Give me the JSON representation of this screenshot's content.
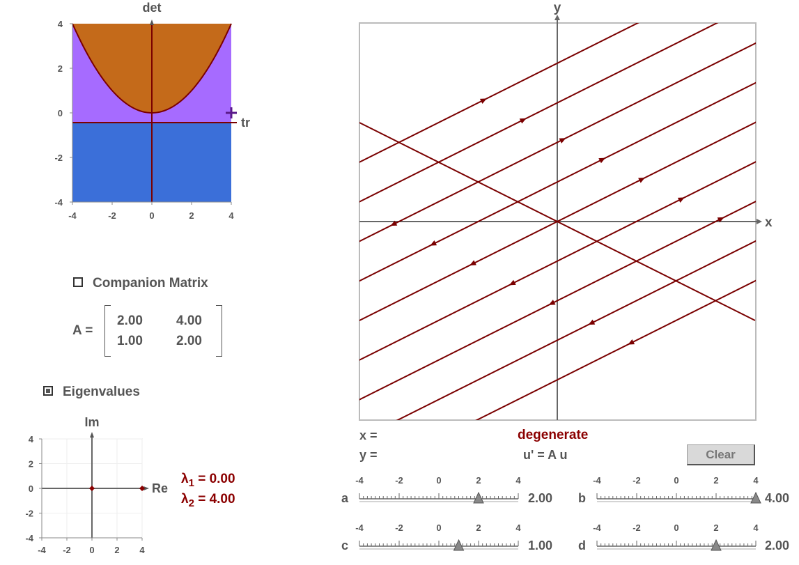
{
  "trace_det_plot": {
    "ylabel": "det",
    "xlabel": "tr",
    "x_ticks": [
      "-4",
      "-2",
      "0",
      "2",
      "4"
    ],
    "y_ticks": [
      "4",
      "2",
      "0",
      "-2",
      "-4"
    ],
    "region_colors": {
      "spiral": "#c46a1a",
      "node": "#a66bff",
      "saddle": "#3b6fd9",
      "curve": "#7a0000"
    },
    "current_point": {
      "tr": 4.0,
      "det": 0.0
    }
  },
  "companion": {
    "label": "Companion Matrix",
    "checked": false
  },
  "matrix": {
    "prefix": "A =",
    "a": "2.00",
    "b": "4.00",
    "c": "1.00",
    "d": "2.00"
  },
  "eigen": {
    "label": "Eigenvalues",
    "checked": true,
    "plot": {
      "ylabel": "Im",
      "xlabel": "Re",
      "x_ticks": [
        "-4",
        "-2",
        "0",
        "2",
        "4"
      ],
      "y_ticks": [
        "4",
        "2",
        "0",
        "-2",
        "-4"
      ],
      "points": [
        {
          "re": 0.0,
          "im": 0.0
        },
        {
          "re": 4.0,
          "im": 0.0
        }
      ]
    },
    "lambda1": "λ",
    "lambda1_sub": "1",
    "lambda1_val": "= 0.00",
    "lambda2": "λ",
    "lambda2_sub": "2",
    "lambda2_val": "= 4.00"
  },
  "phase_plane": {
    "xlabel": "x",
    "ylabel": "y",
    "trajectory_color": "#7a0000"
  },
  "readout": {
    "x_label": "x =",
    "y_label": "y =",
    "classification": "degenerate",
    "equation": "u' = A u",
    "clear_label": "Clear"
  },
  "sliders": {
    "ticks": [
      "-4",
      "-2",
      "0",
      "2",
      "4"
    ],
    "a": {
      "label": "a",
      "value": 2.0,
      "display": "2.00"
    },
    "b": {
      "label": "b",
      "value": 4.0,
      "display": "4.00"
    },
    "c": {
      "label": "c",
      "value": 1.0,
      "display": "1.00"
    },
    "d": {
      "label": "d",
      "value": 2.0,
      "display": "2.00"
    }
  }
}
